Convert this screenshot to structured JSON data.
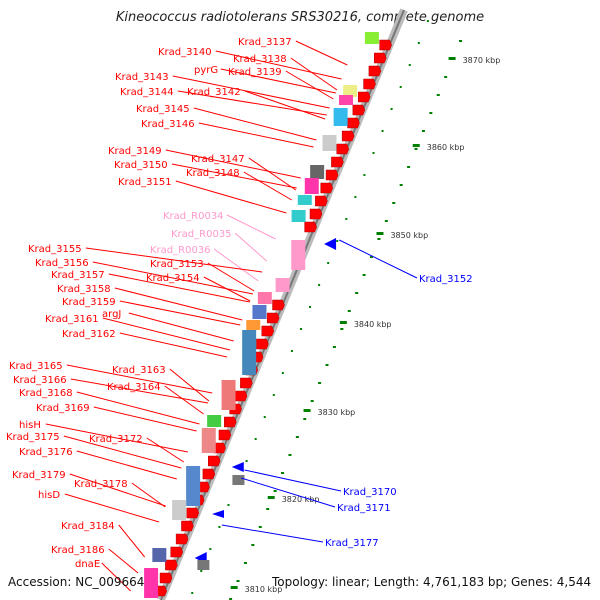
{
  "title": "Kineococcus radiotolerans SRS30216, complete genome",
  "footer": {
    "accession": "Accession: NC_009664",
    "summary": "Topology: linear; Length: 4,761,183 bp; Genes: 4,544"
  },
  "colors": {
    "gene_red": "#ff0000",
    "rna_pink": "#ff99cc",
    "reverse_blue": "#0000ff",
    "tick_green": "#008000",
    "backbone_gray": "#999999"
  },
  "scale": {
    "unit": "kbp",
    "ticks": [
      {
        "label": "3870 kbp"
      },
      {
        "label": "3860 kbp"
      },
      {
        "label": "3850 kbp"
      },
      {
        "label": "3840 kbp"
      },
      {
        "label": "3830 kbp"
      },
      {
        "label": "3820 kbp"
      },
      {
        "label": "3810 kbp"
      }
    ]
  },
  "left_labels": [
    {
      "text": "Krad_3137",
      "kind": "gene"
    },
    {
      "text": "Krad_3140",
      "kind": "gene"
    },
    {
      "text": "Krad_3138",
      "kind": "gene"
    },
    {
      "text": "pyrG",
      "kind": "gene"
    },
    {
      "text": "Krad_3139",
      "kind": "gene"
    },
    {
      "text": "Krad_3143",
      "kind": "gene"
    },
    {
      "text": "Krad_3144",
      "kind": "gene"
    },
    {
      "text": "Krad_3142",
      "kind": "gene"
    },
    {
      "text": "Krad_3145",
      "kind": "gene"
    },
    {
      "text": "Krad_3146",
      "kind": "gene"
    },
    {
      "text": "Krad_3149",
      "kind": "gene"
    },
    {
      "text": "Krad_3147",
      "kind": "gene"
    },
    {
      "text": "Krad_3150",
      "kind": "gene"
    },
    {
      "text": "Krad_3148",
      "kind": "gene"
    },
    {
      "text": "Krad_3151",
      "kind": "gene"
    },
    {
      "text": "Krad_R0034",
      "kind": "rna"
    },
    {
      "text": "Krad_R0035",
      "kind": "rna"
    },
    {
      "text": "Krad_R0036",
      "kind": "rna"
    },
    {
      "text": "Krad_3155",
      "kind": "gene"
    },
    {
      "text": "Krad_3153",
      "kind": "gene"
    },
    {
      "text": "Krad_3156",
      "kind": "gene"
    },
    {
      "text": "Krad_3154",
      "kind": "gene"
    },
    {
      "text": "Krad_3157",
      "kind": "gene"
    },
    {
      "text": "Krad_3158",
      "kind": "gene"
    },
    {
      "text": "Krad_3159",
      "kind": "gene"
    },
    {
      "text": "argJ",
      "kind": "gene"
    },
    {
      "text": "Krad_3161",
      "kind": "gene"
    },
    {
      "text": "Krad_3162",
      "kind": "gene"
    },
    {
      "text": "Krad_3165",
      "kind": "gene"
    },
    {
      "text": "Krad_3163",
      "kind": "gene"
    },
    {
      "text": "Krad_3166",
      "kind": "gene"
    },
    {
      "text": "Krad_3164",
      "kind": "gene"
    },
    {
      "text": "Krad_3168",
      "kind": "gene"
    },
    {
      "text": "Krad_3169",
      "kind": "gene"
    },
    {
      "text": "hisH",
      "kind": "gene"
    },
    {
      "text": "Krad_3175",
      "kind": "gene"
    },
    {
      "text": "Krad_3172",
      "kind": "gene"
    },
    {
      "text": "Krad_3176",
      "kind": "gene"
    },
    {
      "text": "Krad_3179",
      "kind": "gene"
    },
    {
      "text": "Krad_3178",
      "kind": "gene"
    },
    {
      "text": "hisD",
      "kind": "gene"
    },
    {
      "text": "Krad_3184",
      "kind": "gene"
    },
    {
      "text": "Krad_3186",
      "kind": "gene"
    },
    {
      "text": "dnaE",
      "kind": "gene"
    }
  ],
  "right_labels": [
    {
      "text": "Krad_3152"
    },
    {
      "text": "Krad_3170"
    },
    {
      "text": "Krad_3171"
    },
    {
      "text": "Krad_3177"
    }
  ]
}
